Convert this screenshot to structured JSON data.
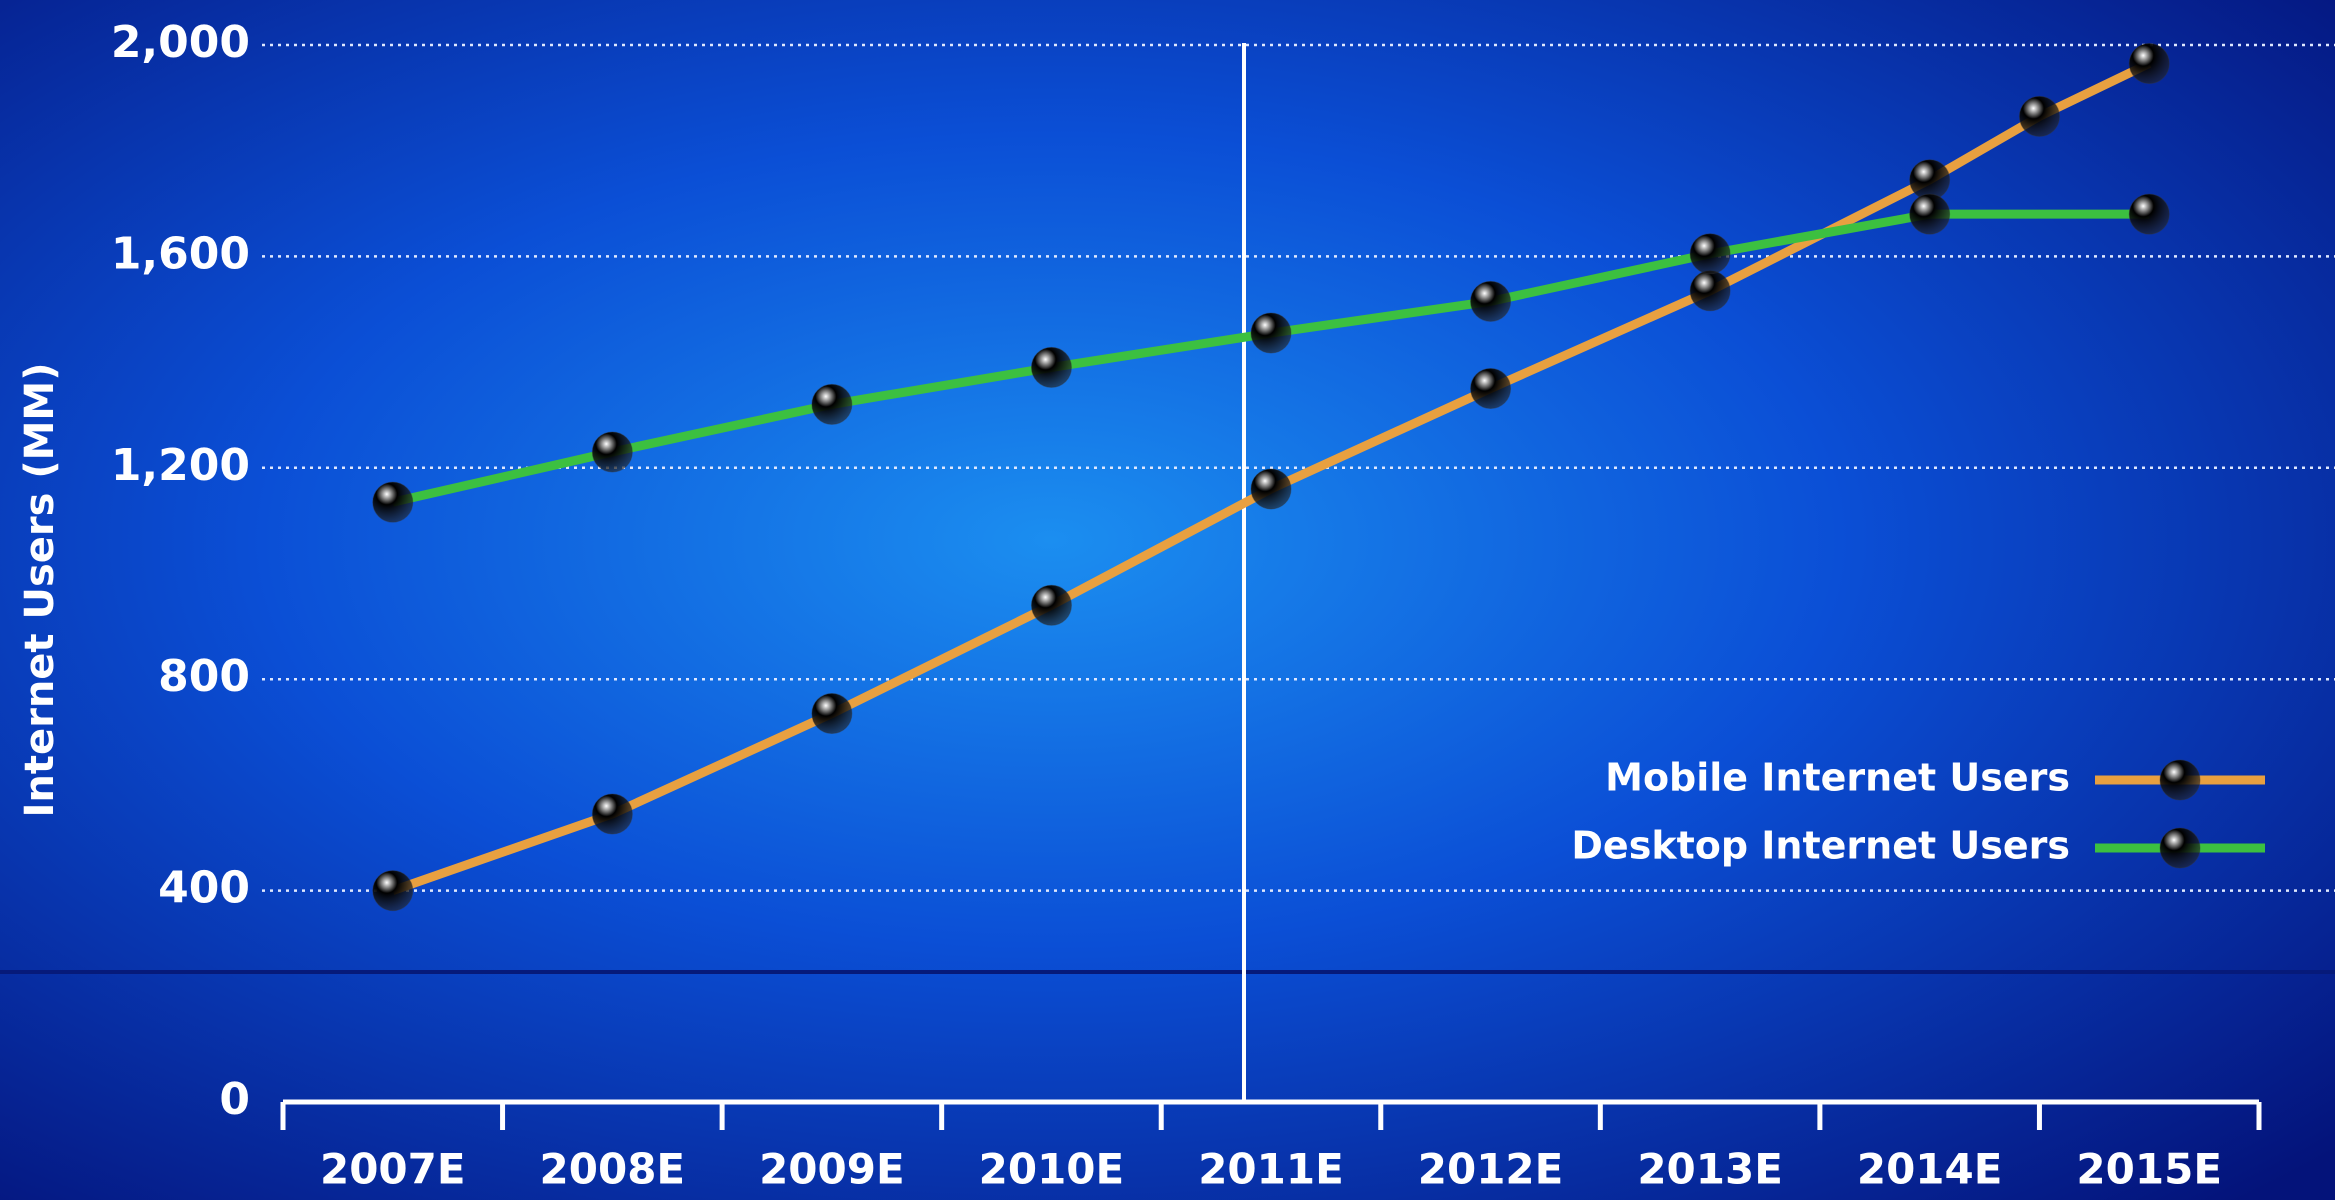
{
  "chart_data": {
    "type": "line",
    "y_label": "Internet Users (MM)",
    "xlim": [
      2006.5,
      2015.5
    ],
    "xticks": [
      {
        "value": 2007,
        "label": "2007E"
      },
      {
        "value": 2008,
        "label": "2008E"
      },
      {
        "value": 2009,
        "label": "2009E"
      },
      {
        "value": 2010,
        "label": "2010E"
      },
      {
        "value": 2011,
        "label": "2011E"
      },
      {
        "value": 2012,
        "label": "2012E"
      },
      {
        "value": 2013,
        "label": "2013E"
      },
      {
        "value": 2014,
        "label": "2014E"
      },
      {
        "value": 2015,
        "label": "2015E"
      }
    ],
    "ylim": [
      0,
      2000
    ],
    "yticks": [
      0,
      400,
      800,
      {
        "value": 1200,
        "label": "1,200"
      },
      {
        "value": 1600,
        "label": "1,600"
      },
      {
        "value": 2000,
        "label": "2,000"
      }
    ],
    "grid": true,
    "legend": "lower right",
    "series": [
      {
        "name": "Mobile Internet Users",
        "color": "#e8a040",
        "marker": "#f5b040",
        "x": [
          2007,
          2008,
          2009,
          2010,
          2011,
          2012,
          2013,
          2014,
          2014.5,
          2015
        ],
        "values": [
          400,
          545,
          735,
          940,
          1160,
          1350,
          1535,
          1745,
          1865,
          1965
        ]
      },
      {
        "name": "Desktop Internet Users",
        "color": "#3cc040",
        "marker": "#1fa83a",
        "x": [
          2007,
          2008,
          2009,
          2010,
          2011,
          2012,
          2013,
          2014,
          2015
        ],
        "values": [
          1135,
          1230,
          1320,
          1390,
          1455,
          1515,
          1605,
          1680,
          1680
        ]
      }
    ]
  }
}
